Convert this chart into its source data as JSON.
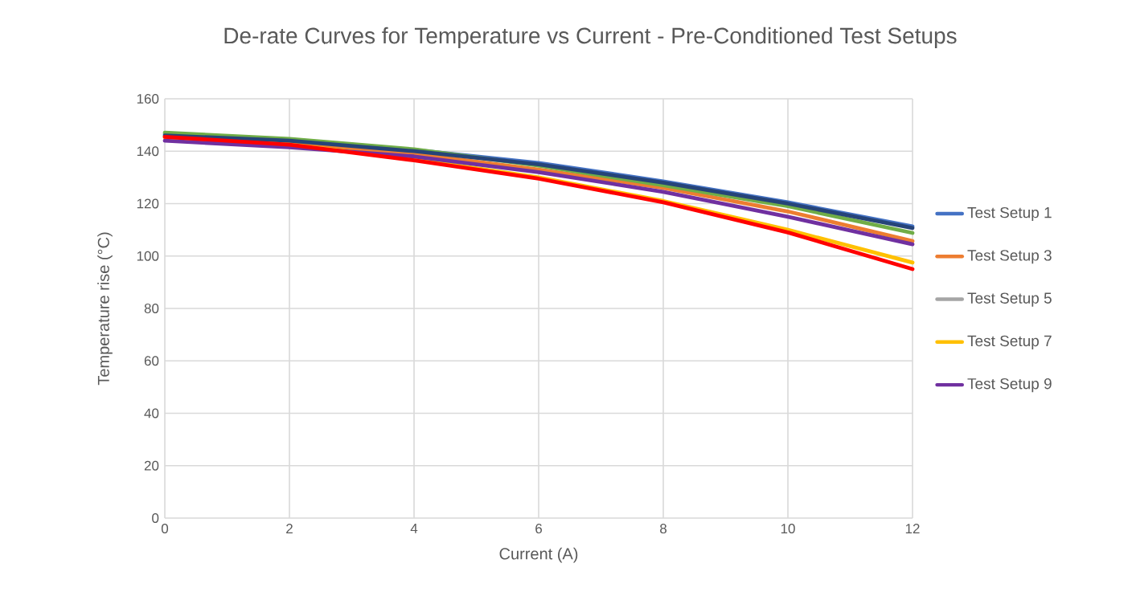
{
  "chart_data": {
    "type": "line",
    "title": "De-rate Curves for Temperature vs Current - Pre-Conditioned Test Setups",
    "xlabel": "Current (A)",
    "ylabel": "Temperature rise (°C)",
    "x": [
      0,
      2,
      4,
      6,
      8,
      10,
      12
    ],
    "series": [
      {
        "name": "Test Setup 1",
        "color": "#4472c4",
        "values": [
          146.5,
          144.5,
          140.5,
          135.5,
          128.5,
          120.5,
          111.3
        ]
      },
      {
        "name": "Test Setup 3",
        "color": "#ed7d31",
        "values": [
          145.5,
          143,
          139,
          133,
          126,
          117,
          105.7
        ]
      },
      {
        "name": "Test Setup 5",
        "color": "#a5a5a5",
        "values": [
          null,
          null,
          null,
          null,
          null,
          null,
          null
        ]
      },
      {
        "name": "Test Setup 7",
        "color": "#ffc000",
        "values": [
          145.5,
          142.5,
          137,
          130,
          121,
          110,
          97.5
        ]
      },
      {
        "name": "Test Setup 9",
        "color": "#7030a0",
        "values": [
          144,
          141.5,
          138,
          132,
          124.5,
          115,
          104.5
        ]
      },
      {
        "color": "#70ad47",
        "values": [
          147.1,
          144.7,
          140.7,
          134.5,
          127,
          119,
          108.8
        ]
      },
      {
        "color": "#264478",
        "values": [
          146,
          144,
          140,
          135,
          128,
          120,
          110.7
        ]
      },
      {
        "color": "#ff0000",
        "values": [
          145.5,
          142.5,
          136.5,
          129.5,
          120.5,
          109,
          95
        ]
      }
    ],
    "xlim": [
      0,
      12
    ],
    "xticks": [
      0,
      2,
      4,
      6,
      8,
      10,
      12
    ],
    "ylim": [
      0,
      160
    ],
    "yticks": [
      0,
      20,
      40,
      60,
      80,
      100,
      120,
      140,
      160
    ],
    "grid": true,
    "legend": "right",
    "marker": "none",
    "line_style": "solid"
  }
}
